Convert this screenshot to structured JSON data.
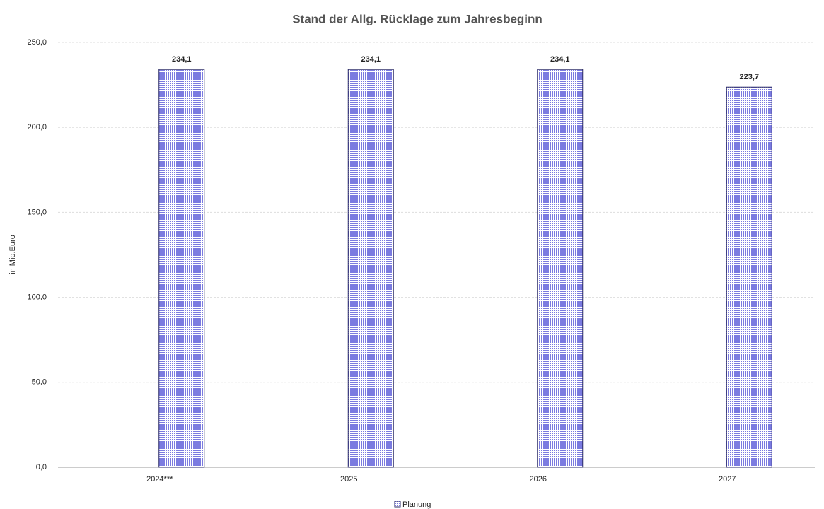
{
  "chart_data": {
    "type": "bar",
    "title": "Stand der Allg. Rücklage zum Jahresbeginn",
    "y_label": "in Mio.Euro",
    "categories": [
      "2024***",
      "2025",
      "2026",
      "2027"
    ],
    "series": [
      {
        "name": "Planung",
        "color": "#7b7be0",
        "values": [
          234.1,
          234.1,
          234.1,
          223.7
        ],
        "value_labels": [
          "234,1",
          "234,1",
          "234,1",
          "223,7"
        ]
      }
    ],
    "ylim": [
      0,
      250
    ],
    "yticks": [
      {
        "value": 0,
        "label": "0,0"
      },
      {
        "value": 50,
        "label": "50,0"
      },
      {
        "value": 100,
        "label": "100,0"
      },
      {
        "value": 150,
        "label": "150,0"
      },
      {
        "value": 200,
        "label": "200,0"
      },
      {
        "value": 250,
        "label": "250,0"
      }
    ],
    "grid": true,
    "legend": "bottom"
  }
}
